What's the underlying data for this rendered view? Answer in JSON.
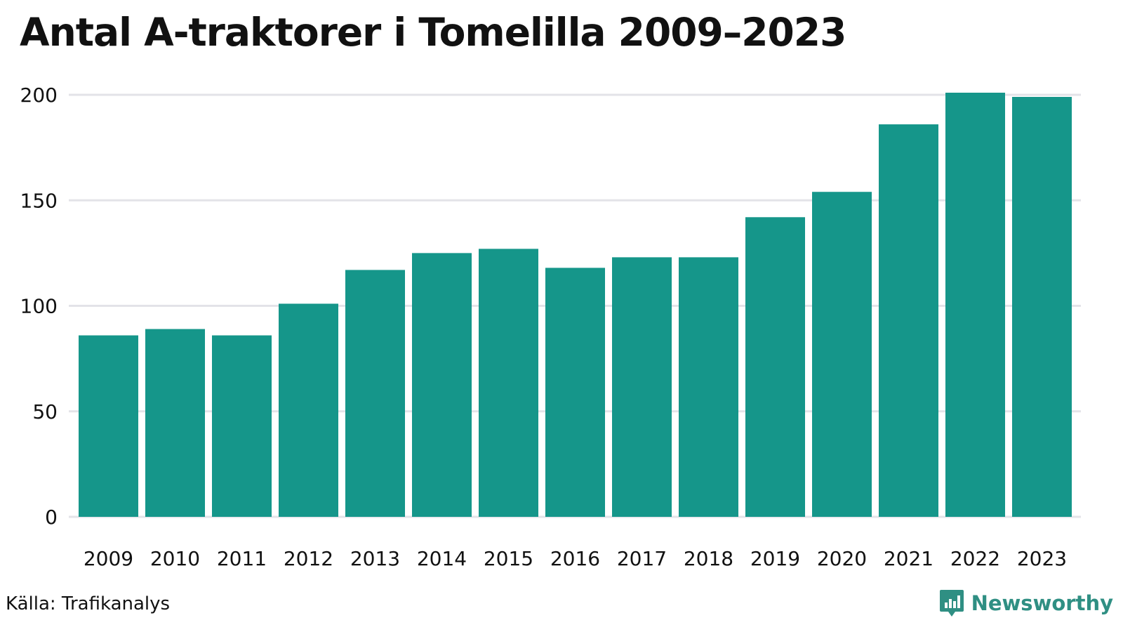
{
  "chart_data": {
    "type": "bar",
    "title": "Antal A-traktorer i Tomelilla 2009–2023",
    "xlabel": "",
    "ylabel": "",
    "categories": [
      "2009",
      "2010",
      "2011",
      "2012",
      "2013",
      "2014",
      "2015",
      "2016",
      "2017",
      "2018",
      "2019",
      "2020",
      "2021",
      "2022",
      "2023"
    ],
    "values": [
      86,
      89,
      86,
      101,
      117,
      125,
      127,
      118,
      123,
      123,
      142,
      154,
      186,
      201,
      199
    ],
    "ylim": [
      0,
      200
    ],
    "yticks": [
      0,
      50,
      100,
      150,
      200
    ],
    "grid": true,
    "legend": "none"
  },
  "colors": {
    "bar": "#15968a",
    "grid": "#e3e3e8",
    "axis_text": "#111111",
    "brand": "#2f8f83"
  },
  "footer": {
    "source": "Källa: Trafikanalys",
    "brand": "Newsworthy",
    "brand_icon": "bar-chart-icon"
  }
}
